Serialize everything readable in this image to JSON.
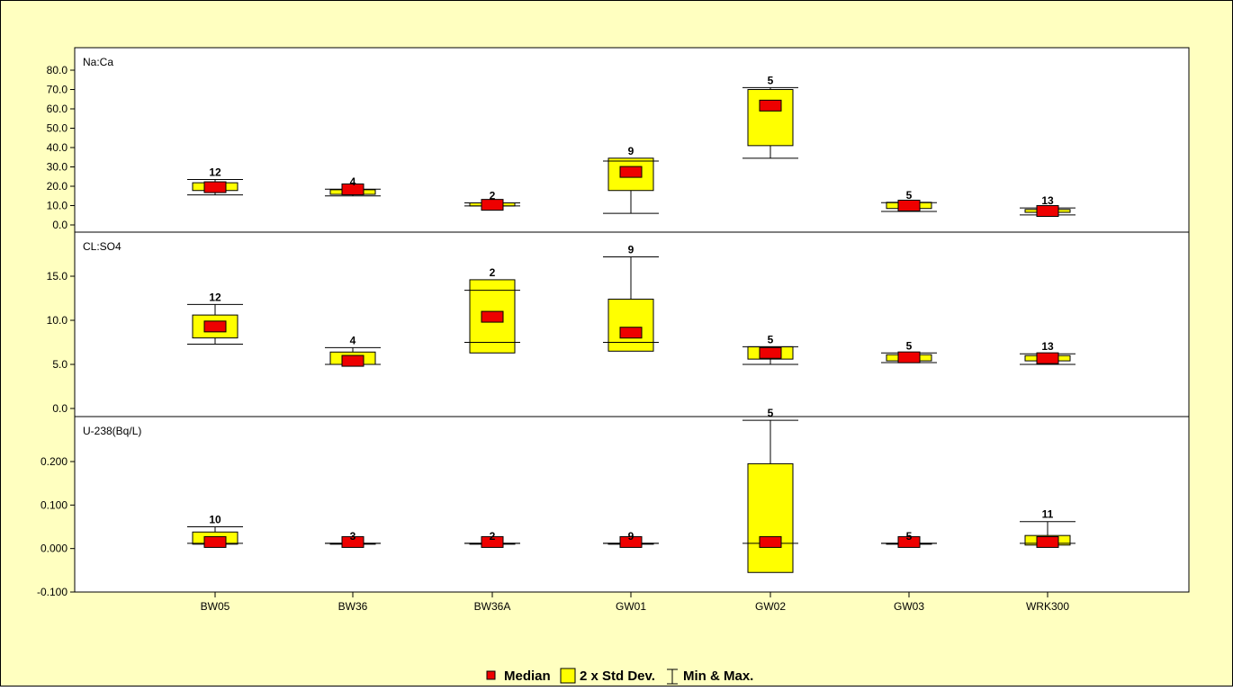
{
  "chart_data": [
    {
      "type": "box",
      "panel_label": "Na:Ca",
      "ylim": [
        0,
        80
      ],
      "yticks": [
        "0.0",
        "10.0",
        "20.0",
        "30.0",
        "40.0",
        "50.0",
        "60.0",
        "70.0",
        "80.0"
      ],
      "ytick_values": [
        0,
        10,
        20,
        30,
        40,
        50,
        60,
        70,
        80
      ],
      "categories": [
        "BW05",
        "BW36",
        "BW36A",
        "GW01",
        "GW02",
        "GW03",
        "WRK300"
      ],
      "boxes": [
        {
          "median": 19.5,
          "std_low": 17.8,
          "std_high": 21.8,
          "min": 15.5,
          "max": 23.5,
          "n": "12"
        },
        {
          "median": 18.4,
          "std_low": 15.8,
          "std_high": 18.2,
          "min": 15.0,
          "max": 18.5,
          "n": "4"
        },
        {
          "median": 10.4,
          "std_low": 9.8,
          "std_high": 11.4,
          "min": 9.8,
          "max": 11.4,
          "n": "2"
        },
        {
          "median": 27.4,
          "std_low": 17.8,
          "std_high": 34.5,
          "min": 6.0,
          "max": 33.0,
          "n": "9"
        },
        {
          "median": 61.7,
          "std_low": 41.0,
          "std_high": 70.0,
          "min": 34.5,
          "max": 71.0,
          "n": "5"
        },
        {
          "median": 10.0,
          "std_low": 8.5,
          "std_high": 11.7,
          "min": 7.0,
          "max": 11.5,
          "n": "5"
        },
        {
          "median": 7.2,
          "std_low": 6.5,
          "std_high": 8.0,
          "min": 5.2,
          "max": 8.8,
          "n": "13"
        }
      ]
    },
    {
      "type": "box",
      "panel_label": "CL:SO4",
      "ylim": [
        0,
        20
      ],
      "yticks": [
        "0.0",
        "5.0",
        "10.0",
        "15.0"
      ],
      "ytick_values": [
        0,
        5,
        10,
        15
      ],
      "categories": [
        "BW05",
        "BW36",
        "BW36A",
        "GW01",
        "GW02",
        "GW03",
        "WRK300"
      ],
      "boxes": [
        {
          "median": 9.3,
          "std_low": 8.0,
          "std_high": 10.6,
          "min": 7.3,
          "max": 11.8,
          "n": "12"
        },
        {
          "median": 5.4,
          "std_low": 5.0,
          "std_high": 6.4,
          "min": 5.0,
          "max": 6.9,
          "n": "4"
        },
        {
          "median": 10.4,
          "std_low": 6.3,
          "std_high": 14.6,
          "min": 7.5,
          "max": 13.4,
          "n": "2"
        },
        {
          "median": 8.6,
          "std_low": 6.5,
          "std_high": 12.4,
          "min": 7.5,
          "max": 17.2,
          "n": "9"
        },
        {
          "median": 6.3,
          "std_low": 5.6,
          "std_high": 7.0,
          "min": 5.0,
          "max": 7.0,
          "n": "5"
        },
        {
          "median": 5.8,
          "std_low": 5.4,
          "std_high": 6.1,
          "min": 5.2,
          "max": 6.3,
          "n": "5"
        },
        {
          "median": 5.7,
          "std_low": 5.4,
          "std_high": 6.0,
          "min": 5.0,
          "max": 6.2,
          "n": "13"
        }
      ]
    },
    {
      "type": "box",
      "panel_label": "U-238(Bq/L)",
      "ylim": [
        -0.1,
        0.3
      ],
      "yticks": [
        "-0.100",
        "0.000",
        "0.100",
        "0.200"
      ],
      "ytick_values": [
        -0.1,
        0,
        0.1,
        0.2
      ],
      "categories": [
        "BW05",
        "BW36",
        "BW36A",
        "GW01",
        "GW02",
        "GW03",
        "WRK300"
      ],
      "boxes": [
        {
          "median": 0.015,
          "std_low": 0.01,
          "std_high": 0.038,
          "min": 0.012,
          "max": 0.05,
          "n": "10"
        },
        {
          "median": 0.015,
          "std_low": 0.012,
          "std_high": 0.012,
          "min": 0.012,
          "max": 0.012,
          "n": "3"
        },
        {
          "median": 0.015,
          "std_low": 0.012,
          "std_high": 0.012,
          "min": 0.012,
          "max": 0.012,
          "n": "2"
        },
        {
          "median": 0.015,
          "std_low": 0.012,
          "std_high": 0.012,
          "min": 0.012,
          "max": 0.012,
          "n": "9"
        },
        {
          "median": 0.015,
          "std_low": -0.055,
          "std_high": 0.195,
          "min": 0.012,
          "max": 0.295,
          "n": "5"
        },
        {
          "median": 0.015,
          "std_low": 0.012,
          "std_high": 0.012,
          "min": 0.012,
          "max": 0.012,
          "n": "5"
        },
        {
          "median": 0.015,
          "std_low": 0.008,
          "std_high": 0.03,
          "min": 0.012,
          "max": 0.062,
          "n": "11"
        }
      ]
    }
  ],
  "legend": {
    "median_label": "Median",
    "std_label": "2 x Std Dev.",
    "minmax_label": "Min & Max."
  },
  "colors": {
    "background": "#ffffc0",
    "plot_background": "#ffffff",
    "std_box": "#ffff00",
    "median_box": "#ee0000",
    "axis": "#000000"
  }
}
